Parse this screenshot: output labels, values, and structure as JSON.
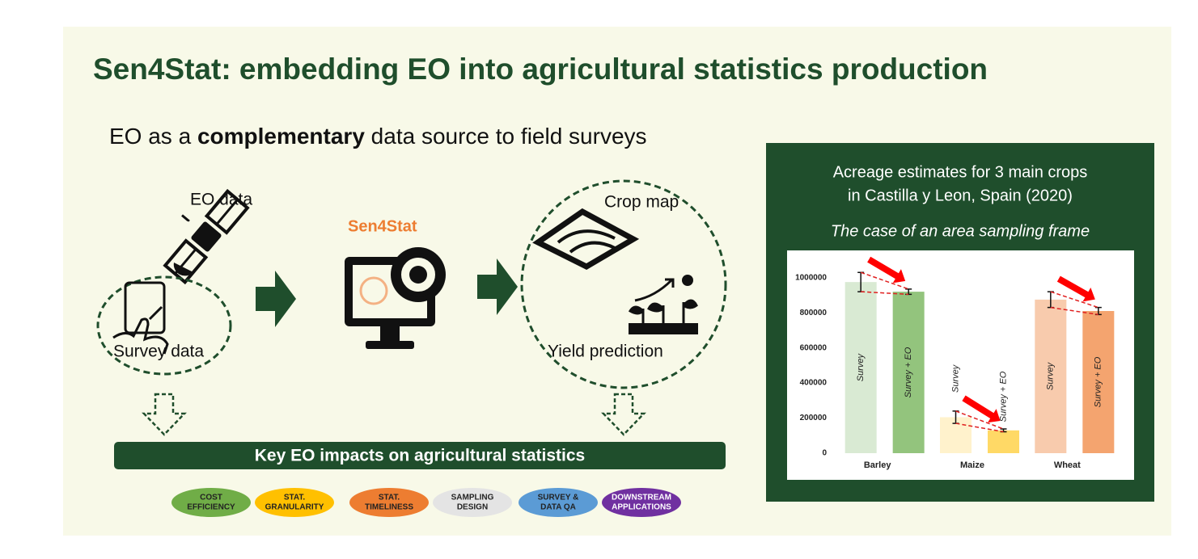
{
  "title": "Sen4Stat: embedding EO into agricultural statistics production",
  "subtitle": {
    "before": "EO as a ",
    "bold": "complementary",
    "after": " data source to field surveys"
  },
  "diagram": {
    "eo_data": "EO data",
    "survey_data": "Survey data",
    "engine": "Sen4Stat",
    "crop_map": "Crop map",
    "yield_prediction": "Yield prediction"
  },
  "banner": "Key EO impacts on agricultural statistics",
  "impacts": [
    {
      "lines": [
        "COST",
        "EFFICIENCY"
      ],
      "color": "#70ad47"
    },
    {
      "lines": [
        "STAT.",
        "GRANULARITY"
      ],
      "color": "#ffc000"
    },
    {
      "lines": [
        "STAT.",
        "TIMELINESS"
      ],
      "color": "#ed7d31"
    },
    {
      "lines": [
        "SAMPLING",
        "DESIGN"
      ],
      "color": "#e4e4e4"
    },
    {
      "lines": [
        "SURVEY &",
        "DATA QA"
      ],
      "color": "#5b9bd5"
    },
    {
      "lines": [
        "DOWNSTREAM",
        "APPLICATIONS"
      ],
      "color": "#7030a0"
    }
  ],
  "chart_data": {
    "type": "bar",
    "title": [
      "Acreage estimates for 3 main crops",
      "in Castilla y Leon, Spain (2020)"
    ],
    "subtitle": "The case of an area sampling frame",
    "categories": [
      "Barley",
      "Maize",
      "Wheat"
    ],
    "series": [
      {
        "name": "Survey",
        "colors": [
          "#d9ead3",
          "#fff2cc",
          "#f8cbad"
        ],
        "values": [
          975000,
          205000,
          875000
        ],
        "errors": [
          55000,
          35000,
          45000
        ]
      },
      {
        "name": "Survey + EO",
        "colors": [
          "#93c47d",
          "#ffd966",
          "#f4a46f"
        ],
        "values": [
          920000,
          130000,
          810000
        ],
        "errors": [
          15000,
          8000,
          20000
        ]
      }
    ],
    "ylim": [
      0,
      1100000
    ],
    "yticks": [
      0,
      200000,
      400000,
      600000,
      800000,
      1000000
    ],
    "grid": false
  }
}
